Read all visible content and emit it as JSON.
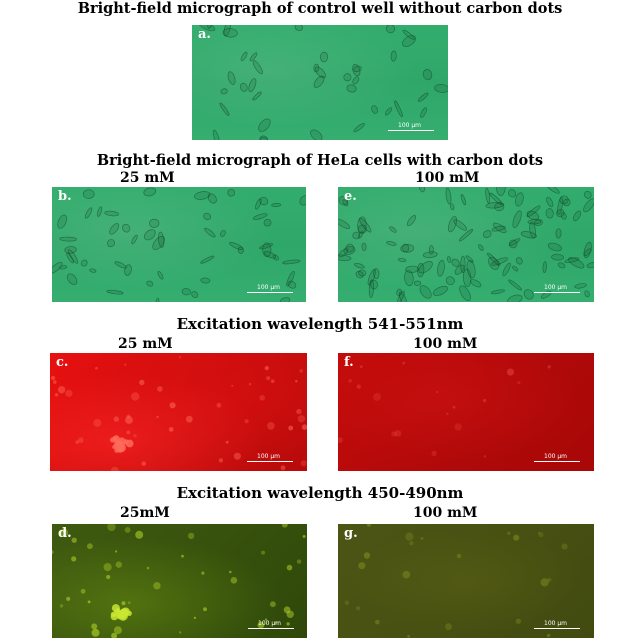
{
  "headings": {
    "control": "Bright-field micrograph of control well without carbon dots",
    "hela": "Bright-field micrograph of HeLa cells with carbon dots",
    "excitation_red": "Excitation wavelength 541-551nm",
    "excitation_green": "Excitation wavelength 450-490nm"
  },
  "concentrations": {
    "row_b_left": "25 mM",
    "row_b_right": "100 mM",
    "row_c_left": "25 mM",
    "row_c_right": "100 mM",
    "row_d_left": "25mM",
    "row_d_right": "100 mM"
  },
  "panels": {
    "a": {
      "label": "a.",
      "scale": "100 μm",
      "kind": "bright-field"
    },
    "b": {
      "label": "b.",
      "scale": "100 μm",
      "kind": "bright-field"
    },
    "e": {
      "label": "e.",
      "scale": "100 μm",
      "kind": "bright-field"
    },
    "c": {
      "label": "c.",
      "scale": "100 μm",
      "kind": "red-fluorescence"
    },
    "f": {
      "label": "f.",
      "scale": "100 μm",
      "kind": "red-fluorescence"
    },
    "d": {
      "label": "d.",
      "scale": "100 μm",
      "kind": "green-fluorescence"
    },
    "g": {
      "label": "g.",
      "scale": "100 μm",
      "kind": "green-fluorescence"
    }
  },
  "colors": {
    "brightfield": "#32aa6c",
    "red_bright": "#e81010",
    "red_dim": "#b80a0a",
    "green_bright": "#3e5a10",
    "green_dim": "#474f12",
    "spot_red": "#ff6a5a",
    "spot_green": "#c8e830"
  }
}
